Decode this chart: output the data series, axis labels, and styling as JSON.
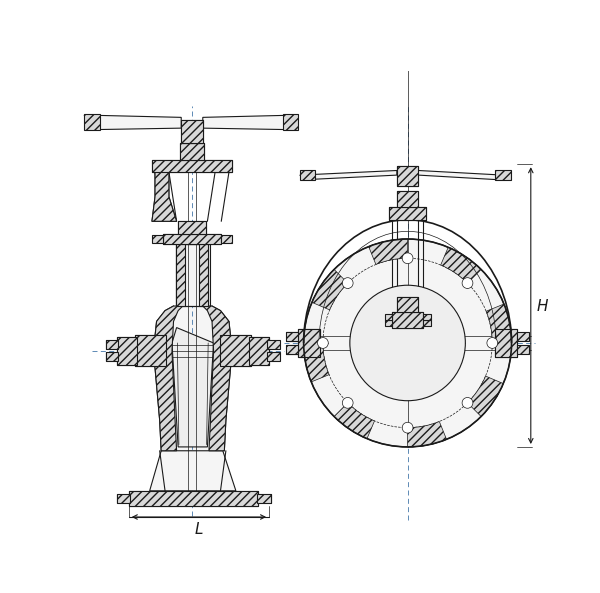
{
  "bg_color": "#ffffff",
  "lc": "#1a1a1a",
  "lw": 0.8,
  "lw_thin": 0.5,
  "lw_thick": 1.2,
  "hatch_fc": "#d8d8d8",
  "body_fc": "#f5f5f5",
  "fig_w": 6.0,
  "fig_h": 5.93,
  "dpi": 100,
  "L_label": "L",
  "H_label": "H",
  "dash_color": "#4477aa"
}
